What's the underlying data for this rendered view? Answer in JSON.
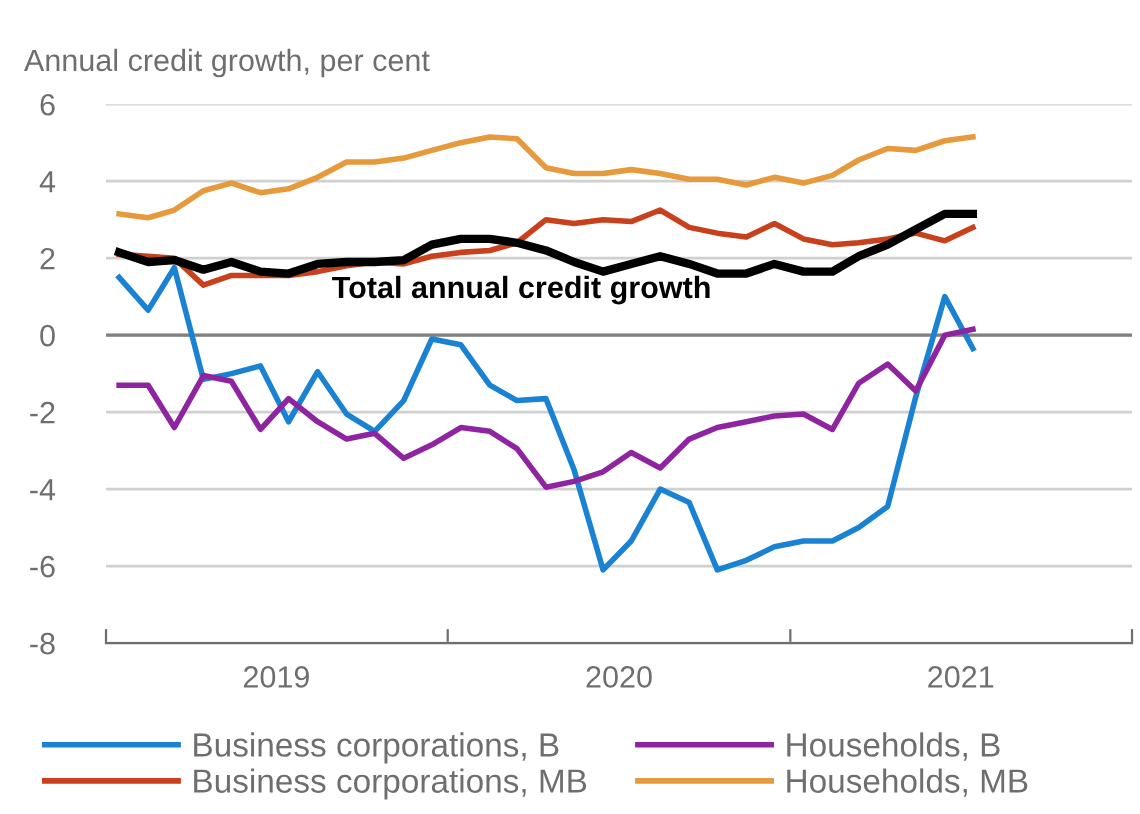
{
  "chart_data": {
    "type": "line",
    "ylabel": "Annual credit growth, per cent",
    "x": [
      "2019-01-15",
      "2019-02-15",
      "2019-03-15",
      "2019-04-15",
      "2019-05-15",
      "2019-06-15",
      "2019-07-15",
      "2019-08-15",
      "2019-09-15",
      "2019-10-15",
      "2019-11-15",
      "2019-12-15",
      "2020-01-15",
      "2020-02-15",
      "2020-03-15",
      "2020-04-15",
      "2020-05-15",
      "2020-06-15",
      "2020-07-15",
      "2020-08-15",
      "2020-09-15",
      "2020-10-15",
      "2020-11-15",
      "2020-12-15",
      "2021-01-15",
      "2021-02-15",
      "2021-03-15",
      "2021-04-15",
      "2021-05-15",
      "2021-06-15",
      "2021-07-15"
    ],
    "series": [
      {
        "name": "Business corporations, B",
        "color": "#1a82d2",
        "values": [
          1.5,
          0.65,
          1.75,
          -1.15,
          -1.0,
          -0.8,
          -2.25,
          -0.95,
          -2.05,
          -2.5,
          -1.7,
          -0.1,
          -0.25,
          -1.3,
          -1.7,
          -1.65,
          -3.5,
          -6.1,
          -5.35,
          -4.0,
          -4.35,
          -6.1,
          -5.85,
          -5.5,
          -5.35,
          -5.35,
          -5.0,
          -4.45,
          -1.6,
          1.0,
          -0.35
        ]
      },
      {
        "name": "Households, B",
        "color": "#8e24a0",
        "values": [
          -1.3,
          -1.3,
          -2.4,
          -1.05,
          -1.2,
          -2.45,
          -1.65,
          -2.25,
          -2.7,
          -2.55,
          -3.2,
          -2.85,
          -2.4,
          -2.5,
          -2.95,
          -3.95,
          -3.8,
          -3.55,
          -3.05,
          -3.45,
          -2.7,
          -2.4,
          -2.25,
          -2.1,
          -2.05,
          -2.45,
          -1.25,
          -0.75,
          -1.45,
          0.0,
          0.15
        ]
      },
      {
        "name": "Business corporations, MB",
        "color": "#c8401c",
        "values": [
          2.1,
          2.05,
          2.0,
          1.3,
          1.55,
          1.55,
          1.55,
          1.65,
          1.8,
          1.9,
          1.85,
          2.05,
          2.15,
          2.2,
          2.4,
          3.0,
          2.9,
          3.0,
          2.95,
          3.25,
          2.8,
          2.65,
          2.55,
          2.9,
          2.5,
          2.35,
          2.4,
          2.5,
          2.65,
          2.45,
          2.8
        ]
      },
      {
        "name": "Households, MB",
        "color": "#e69a3c",
        "values": [
          3.15,
          3.05,
          3.25,
          3.75,
          3.95,
          3.7,
          3.8,
          4.1,
          4.5,
          4.5,
          4.6,
          4.8,
          5.0,
          5.15,
          5.1,
          4.35,
          4.2,
          4.2,
          4.3,
          4.2,
          4.05,
          4.05,
          3.9,
          4.1,
          3.95,
          4.15,
          4.55,
          4.85,
          4.8,
          5.05,
          5.15
        ]
      },
      {
        "name": "Total annual credit growth",
        "color": "#000000",
        "values": [
          2.15,
          1.9,
          1.95,
          1.7,
          1.9,
          1.65,
          1.6,
          1.85,
          1.9,
          1.9,
          1.95,
          2.35,
          2.5,
          2.5,
          2.4,
          2.2,
          1.9,
          1.65,
          1.85,
          2.05,
          1.85,
          1.6,
          1.6,
          1.85,
          1.65,
          1.65,
          2.05,
          2.35,
          2.75,
          3.15,
          3.15
        ]
      }
    ],
    "xlim": [
      "2019-01-01",
      "2022-01-01"
    ],
    "xticks": [
      {
        "value": "2019-01-01",
        "label": null
      },
      {
        "value": "2019-07-02",
        "label": "2019"
      },
      {
        "value": "2020-01-01",
        "label": null
      },
      {
        "value": "2020-07-02",
        "label": "2020"
      },
      {
        "value": "2021-01-01",
        "label": null
      },
      {
        "value": "2021-07-02",
        "label": "2021"
      },
      {
        "value": "2022-01-01",
        "label": null
      }
    ],
    "ylim": [
      -8,
      6
    ],
    "yticks": [
      -8,
      -6,
      -4,
      -2,
      0,
      2,
      4,
      6
    ],
    "grid": "y",
    "ref_lines": [
      {
        "axis": "y",
        "value": 0,
        "label": null,
        "color": "#808080"
      }
    ],
    "legend": "bottom",
    "line_style": "solid"
  }
}
